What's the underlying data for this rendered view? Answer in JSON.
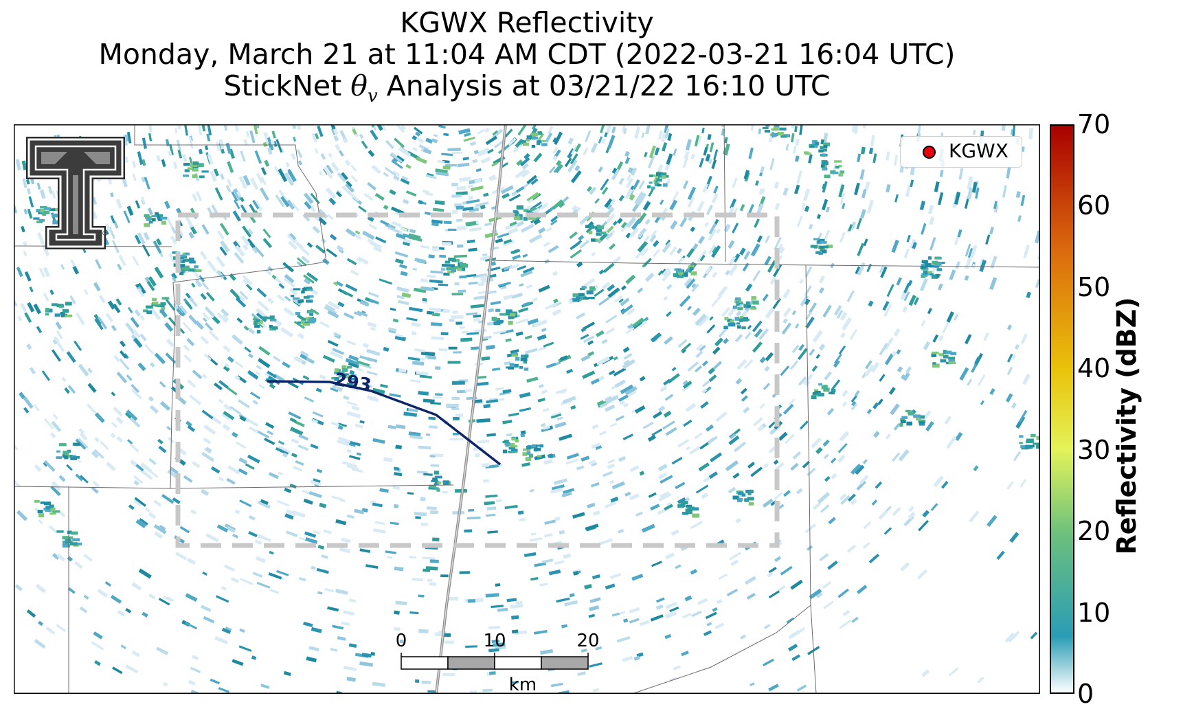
{
  "title": {
    "line1": "KGWX Reflectivity",
    "line2": "Monday, March 21 at 11:04 AM CDT (2022-03-21 16:04 UTC)",
    "line3_prefix": "StickNet ",
    "line3_symbol": "θ",
    "line3_sub": "v",
    "line3_suffix": " Analysis at 03/21/22 16:10 UTC"
  },
  "legend": {
    "label": "KGWX",
    "marker_color": "#e8000b"
  },
  "colorbar": {
    "title": "Reflectivity (dBZ)",
    "min": 0,
    "max": 70,
    "ticks": [
      "0",
      "10",
      "20",
      "30",
      "40",
      "50",
      "60",
      "70"
    ],
    "stops": [
      "#ffffff",
      "#2a9db5",
      "#6cc07d",
      "#e4f35a",
      "#e9c20a",
      "#db6a0e",
      "#a80000"
    ]
  },
  "contour": {
    "label": "293",
    "color": "#0d2568"
  },
  "scale_bar": {
    "ticks": [
      "0",
      "10",
      "20"
    ],
    "unit": "km"
  },
  "logo": {
    "name": "Texas Tech Double T",
    "mark": "®"
  }
}
